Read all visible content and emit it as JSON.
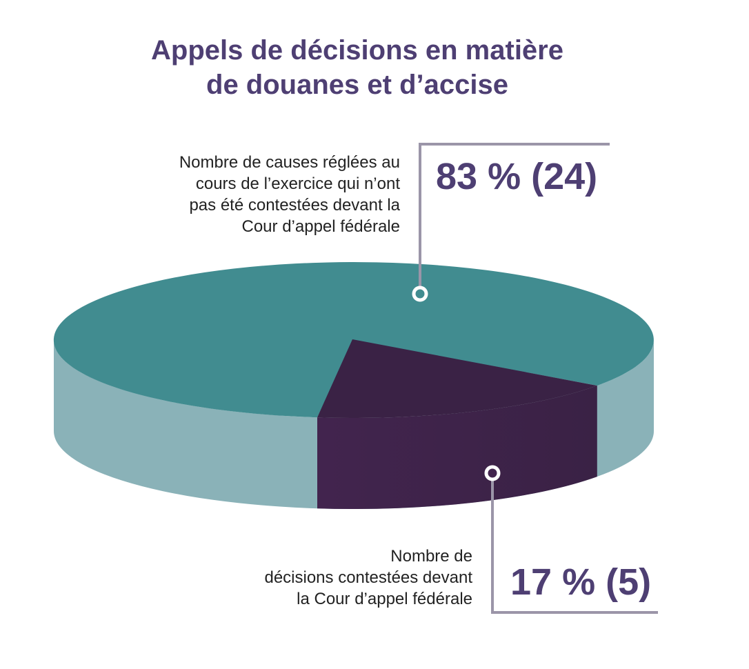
{
  "title": {
    "line1": "Appels de décisions en matière",
    "line2": "de douanes et d’accise"
  },
  "colors": {
    "title": "#4e3f73",
    "teal_top": "#418c90",
    "teal_side": "#8ab2b8",
    "purple_top": "#3a2245",
    "purple_side": "#42244e",
    "leader_line": "#9b95a8"
  },
  "chart_data": {
    "type": "pie",
    "title": "Appels de décisions en matière de douanes et d’accise",
    "slices": [
      {
        "label": "Nombre de causes réglées au cours de l’exercice qui n’ont pas été contestées devant la Cour d’appel fédérale",
        "percent": 83,
        "count": 24,
        "display": "83 % (24)"
      },
      {
        "label": "Nombre de décisions contestées devant la Cour d’appel fédérale",
        "percent": 17,
        "count": 5,
        "display": "17 % (5)"
      }
    ]
  },
  "callouts": {
    "a": {
      "lines": [
        "Nombre de causes réglées au",
        "cours de l’exercice qui n’ont",
        "pas été contestées devant la",
        "Cour d’appel fédérale"
      ],
      "value": "83 % (24)"
    },
    "b": {
      "lines": [
        "Nombre de",
        "décisions contestées devant",
        "la Cour d’appel fédérale"
      ],
      "value": "17 % (5)"
    }
  }
}
